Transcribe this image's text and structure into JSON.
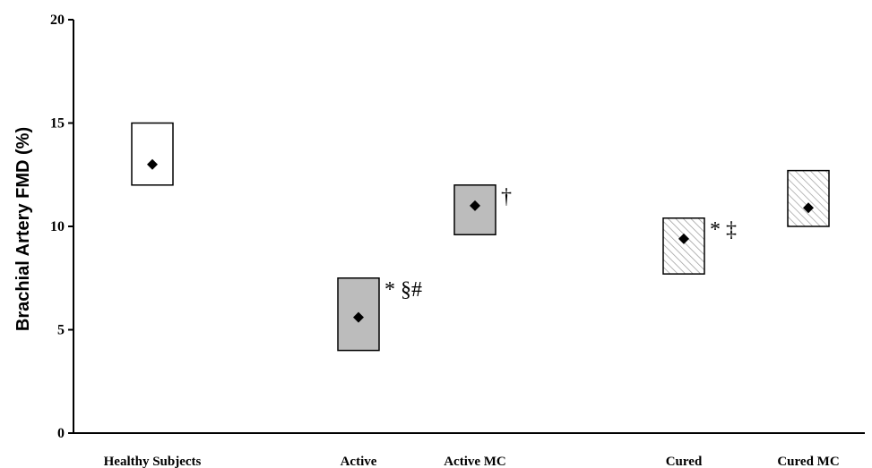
{
  "chart_data": {
    "type": "box",
    "title": "",
    "xlabel": "",
    "ylabel": "Brachial Artery FMD (%)",
    "ylim": [
      0,
      20
    ],
    "yticks": [
      "0",
      "5",
      "10",
      "15",
      "20"
    ],
    "grid": false,
    "categories": [
      "Healthy Subjects",
      "Active",
      "Active MC",
      "Cured",
      "Cured MC"
    ],
    "groups": [
      {
        "category": "Healthy Subjects",
        "low": 12.0,
        "high": 15.0,
        "mean": 13.0,
        "fill": "white",
        "annotation": ""
      },
      {
        "category": "Active",
        "low": 4.0,
        "high": 7.5,
        "mean": 5.6,
        "fill": "gray",
        "annotation": "* §#"
      },
      {
        "category": "Active MC",
        "low": 9.6,
        "high": 12.0,
        "mean": 11.0,
        "fill": "gray",
        "annotation": "†"
      },
      {
        "category": "Cured",
        "low": 7.7,
        "high": 10.4,
        "mean": 9.4,
        "fill": "hatched",
        "annotation": "* ‡"
      },
      {
        "category": "Cured MC",
        "low": 10.0,
        "high": 12.7,
        "mean": 10.9,
        "fill": "hatched",
        "annotation": ""
      }
    ],
    "colors": {
      "gray": "#bcbcbc",
      "white": "#ffffff",
      "hatch": "#9a9a9a",
      "axis": "#000000"
    }
  }
}
